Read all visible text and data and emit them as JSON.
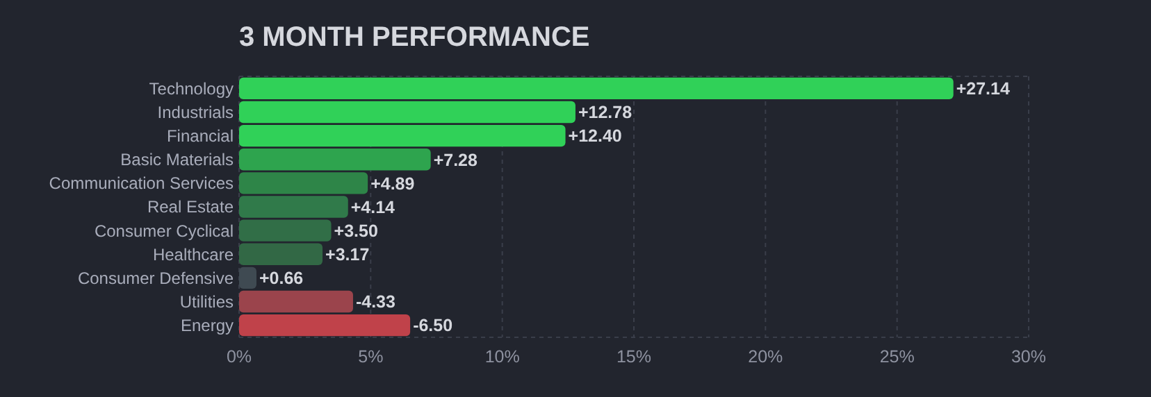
{
  "chart_data": {
    "type": "bar",
    "orientation": "horizontal",
    "title": "3 MONTH PERFORMANCE",
    "categories": [
      "Technology",
      "Industrials",
      "Financial",
      "Basic Materials",
      "Communication Services",
      "Real Estate",
      "Consumer Cyclical",
      "Healthcare",
      "Consumer Defensive",
      "Utilities",
      "Energy"
    ],
    "values": [
      27.14,
      12.78,
      12.4,
      7.28,
      4.89,
      4.14,
      3.5,
      3.17,
      0.66,
      -4.33,
      -6.5
    ],
    "base": [
      0,
      0,
      0,
      0,
      0,
      0,
      0,
      0,
      0,
      4.33,
      6.5
    ],
    "value_labels": [
      "+27.14",
      "+12.78",
      "+12.40",
      "+7.28",
      "+4.89",
      "+4.14",
      "+3.50",
      "+3.17",
      "+0.66",
      "-4.33",
      "-6.50"
    ],
    "colors": [
      "#30d158",
      "#30d158",
      "#30d158",
      "#2ea44e",
      "#2e8548",
      "#307a4a",
      "#316e47",
      "#326845",
      "#3f4a52",
      "#9b444c",
      "#c0424a"
    ],
    "xlim": [
      0,
      30
    ],
    "xticks": [
      {
        "value": 0,
        "label": "0%"
      },
      {
        "value": 5,
        "label": "5%"
      },
      {
        "value": 10,
        "label": "10%"
      },
      {
        "value": 15,
        "label": "15%"
      },
      {
        "value": 20,
        "label": "20%"
      },
      {
        "value": 25,
        "label": "25%"
      },
      {
        "value": 30,
        "label": "30%"
      }
    ],
    "grid": "x"
  }
}
